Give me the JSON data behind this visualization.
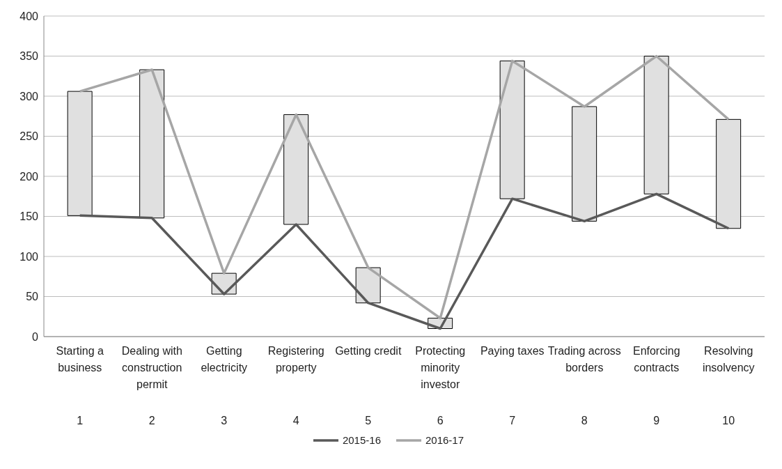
{
  "chart_data": {
    "type": "line",
    "categories": [
      "Starting a business\n1",
      "Dealing with construction permit\n2",
      "Getting electricity\n3",
      "Registering property\n4",
      "Getting credit\n5",
      "Protecting minority investor\n6",
      "Paying taxes\n7",
      "Trading across borders\n8",
      "Enforcing contracts\n9",
      "Resolving insolvency\n10"
    ],
    "series": [
      {
        "type": "bar",
        "color": "#e0e0e0",
        "base": [
          151,
          148,
          53,
          140,
          42,
          10,
          172,
          144,
          178,
          135
        ],
        "values": [
          155,
          185,
          26,
          137,
          44,
          13,
          172,
          143,
          172,
          136
        ]
      },
      {
        "name": "2015-16",
        "color": "#595959",
        "values": [
          151,
          148,
          53,
          140,
          42,
          10,
          172,
          144,
          178,
          135
        ]
      },
      {
        "name": "2016-17",
        "color": "#a6a6a6",
        "values": [
          306,
          333,
          79,
          277,
          86,
          23,
          344,
          287,
          350,
          271
        ]
      }
    ],
    "ylim": [
      0,
      400
    ],
    "yticks": [
      0,
      50,
      100,
      150,
      200,
      250,
      300,
      350,
      400
    ],
    "grid": "y",
    "legend": "bottom",
    "marker": "none",
    "line_style": "solid"
  }
}
